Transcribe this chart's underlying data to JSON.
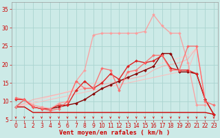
{
  "background_color": "#cceae7",
  "grid_color": "#aad4d0",
  "xlabel": "Vent moyen/en rafales ( km/h )",
  "xlim": [
    -0.5,
    23.5
  ],
  "ylim": [
    5,
    37
  ],
  "yticks": [
    5,
    10,
    15,
    20,
    25,
    30,
    35
  ],
  "xticks": [
    0,
    1,
    2,
    3,
    4,
    5,
    6,
    7,
    8,
    9,
    10,
    11,
    12,
    13,
    14,
    15,
    16,
    17,
    18,
    19,
    20,
    21,
    22,
    23
  ],
  "lines": [
    {
      "x": [
        0,
        1,
        2,
        3,
        4,
        5,
        6,
        7,
        8,
        9,
        10,
        11,
        12,
        13,
        14,
        15,
        16,
        17,
        18,
        19,
        20,
        21,
        22,
        23
      ],
      "y": [
        8.5,
        9.0,
        9.5,
        10.0,
        10.5,
        11.0,
        11.5,
        12.0,
        12.5,
        13.0,
        13.5,
        14.0,
        14.5,
        15.0,
        15.5,
        16.0,
        16.5,
        17.0,
        17.5,
        18.0,
        18.5,
        24.5,
        10.5,
        6.5
      ],
      "color": "#ffbbbb",
      "marker": null,
      "linewidth": 0.8,
      "alpha": 0.9
    },
    {
      "x": [
        0,
        1,
        2,
        3,
        4,
        5,
        6,
        7,
        8,
        9,
        10,
        11,
        12,
        13,
        14,
        15,
        16,
        17,
        18,
        19,
        20,
        21,
        22,
        23
      ],
      "y": [
        8.5,
        9.2,
        9.9,
        10.6,
        11.3,
        12.0,
        12.7,
        13.4,
        14.1,
        14.8,
        15.5,
        16.2,
        16.9,
        17.6,
        18.3,
        19.0,
        19.7,
        20.4,
        21.1,
        21.8,
        22.5,
        24.5,
        10.5,
        6.5
      ],
      "color": "#ffcccc",
      "marker": null,
      "linewidth": 0.8,
      "alpha": 0.9
    },
    {
      "x": [
        0,
        1,
        2,
        3,
        4,
        5,
        6,
        7,
        8,
        9,
        10,
        11,
        12,
        13,
        14,
        15,
        16,
        17,
        18,
        19,
        20,
        21,
        22,
        23
      ],
      "y": [
        8.5,
        9.5,
        10.5,
        11.0,
        11.5,
        12.0,
        12.5,
        13.0,
        13.5,
        14.0,
        14.5,
        15.0,
        15.5,
        16.0,
        16.5,
        17.0,
        18.5,
        19.5,
        20.0,
        20.5,
        21.5,
        24.5,
        10.5,
        6.5
      ],
      "color": "#ffaaaa",
      "marker": null,
      "linewidth": 0.8,
      "alpha": 0.85
    },
    {
      "x": [
        0,
        1,
        2,
        3,
        4,
        5,
        6,
        7,
        8,
        9,
        10,
        11,
        12,
        13,
        14,
        15,
        16,
        17,
        18,
        19,
        20,
        21,
        22,
        23
      ],
      "y": [
        8.5,
        8.5,
        7.0,
        7.0,
        7.0,
        7.0,
        7.0,
        7.0,
        7.0,
        7.0,
        7.0,
        7.0,
        7.0,
        7.0,
        7.0,
        7.0,
        7.0,
        7.0,
        7.0,
        7.0,
        7.0,
        7.0,
        7.0,
        6.5
      ],
      "color": "#cc0000",
      "marker": null,
      "linewidth": 1.0,
      "alpha": 1.0
    },
    {
      "x": [
        0,
        1,
        2,
        3,
        4,
        5,
        6,
        7,
        8,
        9,
        10,
        11,
        12,
        13,
        14,
        15,
        16,
        17,
        18,
        19,
        20,
        21,
        22,
        23
      ],
      "y": [
        8.5,
        10.5,
        8.5,
        8.0,
        8.0,
        8.5,
        9.0,
        9.5,
        10.5,
        12.0,
        13.5,
        14.5,
        15.5,
        16.5,
        17.5,
        18.5,
        19.5,
        23.0,
        23.0,
        18.0,
        18.0,
        17.5,
        10.5,
        6.5
      ],
      "color": "#880000",
      "marker": "D",
      "markersize": 2.0,
      "linewidth": 1.0,
      "alpha": 1.0
    },
    {
      "x": [
        0,
        1,
        2,
        3,
        4,
        5,
        6,
        7,
        8,
        9,
        10,
        11,
        12,
        13,
        14,
        15,
        16,
        17,
        18,
        19,
        20,
        21,
        22,
        23
      ],
      "y": [
        10.5,
        10.5,
        8.5,
        8.0,
        8.0,
        9.0,
        9.0,
        13.0,
        15.5,
        13.5,
        15.0,
        17.5,
        16.0,
        19.5,
        21.0,
        20.5,
        21.0,
        22.5,
        19.0,
        18.5,
        18.5,
        17.5,
        10.5,
        6.5
      ],
      "color": "#dd2222",
      "marker": "D",
      "markersize": 2.0,
      "linewidth": 1.0,
      "alpha": 1.0
    },
    {
      "x": [
        0,
        1,
        2,
        3,
        4,
        5,
        6,
        7,
        8,
        9,
        10,
        11,
        12,
        13,
        14,
        15,
        16,
        17,
        18,
        19,
        20,
        21,
        22
      ],
      "y": [
        8.5,
        10.5,
        9.0,
        8.5,
        8.0,
        9.5,
        10.0,
        15.5,
        18.5,
        28.0,
        28.5,
        28.5,
        28.5,
        28.5,
        28.5,
        29.0,
        33.5,
        30.5,
        28.5,
        28.5,
        20.5,
        9.0,
        9.0
      ],
      "color": "#ff9999",
      "marker": "D",
      "markersize": 2.0,
      "linewidth": 1.0,
      "alpha": 0.85
    },
    {
      "x": [
        0,
        1,
        2,
        3,
        4,
        5,
        6,
        7,
        8,
        9,
        10,
        11,
        12,
        13,
        14,
        15,
        16,
        17,
        18,
        19,
        20,
        21,
        22,
        23
      ],
      "y": [
        11.0,
        10.5,
        8.5,
        8.0,
        7.5,
        8.0,
        10.0,
        15.5,
        13.5,
        13.5,
        19.0,
        18.5,
        13.0,
        18.0,
        18.5,
        20.5,
        22.5,
        22.5,
        18.5,
        18.5,
        25.0,
        25.0,
        10.0,
        9.0
      ],
      "color": "#ff6666",
      "marker": "D",
      "markersize": 2.0,
      "linewidth": 1.0,
      "alpha": 0.85
    }
  ],
  "tick_fontsize": 5.5,
  "label_fontsize": 6.5,
  "arrow_color": "#dd0000"
}
